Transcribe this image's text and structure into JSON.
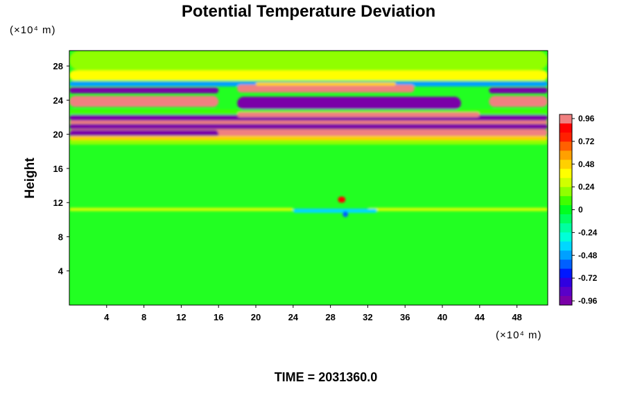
{
  "chart_data": {
    "type": "heatmap",
    "title": "Potential Temperature Deviation",
    "ylabel": "Height",
    "y_unit": "(×10⁴ m)",
    "x_unit": "(×10⁴ m)",
    "footer": "TIME = 2031360.0",
    "xlim": [
      0,
      51.3
    ],
    "ylim": [
      0,
      29.8
    ],
    "x_ticks": [
      "4",
      "8",
      "12",
      "16",
      "20",
      "24",
      "28",
      "32",
      "36",
      "40",
      "44",
      "48"
    ],
    "y_ticks": [
      "4",
      "8",
      "12",
      "16",
      "20",
      "24",
      "28"
    ],
    "colorbar": {
      "range": [
        -1.0,
        1.0
      ],
      "tick_labels": [
        "0.96",
        "0.72",
        "0.48",
        "0.24",
        "0",
        "-0.24",
        "-0.48",
        "-0.72",
        "-0.96"
      ],
      "colors": [
        "#7a00a8",
        "#5a00c8",
        "#3000e0",
        "#0018ff",
        "#0060ff",
        "#00a0ff",
        "#00d8ff",
        "#00ffd8",
        "#00ffa0",
        "#00ff60",
        "#00ff20",
        "#40ff00",
        "#90ff00",
        "#d0ff00",
        "#ffff00",
        "#ffd000",
        "#ffa000",
        "#ff6000",
        "#ff2000",
        "#ff0000",
        "#f08080"
      ]
    },
    "regions": [
      {
        "y": [
          27.5,
          29.8
        ],
        "x": [
          0,
          51.3
        ],
        "value": 0.2
      },
      {
        "y": [
          26.3,
          27.5
        ],
        "x": [
          0,
          51.3
        ],
        "value": 0.35
      },
      {
        "y": [
          25.6,
          26.2
        ],
        "x": [
          0,
          51.3
        ],
        "value": -0.5
      },
      {
        "y": [
          24.8,
          25.5
        ],
        "x": [
          0,
          16
        ],
        "value": -0.96
      },
      {
        "y": [
          24.8,
          25.5
        ],
        "x": [
          45,
          51.3
        ],
        "value": -0.96
      },
      {
        "y": [
          24.9,
          25.8
        ],
        "x": [
          18,
          37
        ],
        "value": 0.96
      },
      {
        "y": [
          25.7,
          26.1
        ],
        "x": [
          20,
          35
        ],
        "value": 0.5
      },
      {
        "y": [
          23.2,
          24.5
        ],
        "x": [
          0,
          16
        ],
        "value": 0.96
      },
      {
        "y": [
          23.2,
          24.5
        ],
        "x": [
          45,
          51.3
        ],
        "value": 0.96
      },
      {
        "y": [
          22.9,
          24.4
        ],
        "x": [
          18,
          42
        ],
        "value": -0.96
      },
      {
        "y": [
          22.3,
          22.9
        ],
        "x": [
          0,
          51.3
        ],
        "value": 0.1
      },
      {
        "y": [
          21.6,
          22.3
        ],
        "x": [
          0,
          51.3
        ],
        "value": -0.96
      },
      {
        "y": [
          22.0,
          22.6
        ],
        "x": [
          18,
          44
        ],
        "value": 0.96
      },
      {
        "y": [
          21.2,
          21.6
        ],
        "x": [
          0,
          51.3
        ],
        "value": 0.96
      },
      {
        "y": [
          20.6,
          21.2
        ],
        "x": [
          0,
          51.3
        ],
        "value": -0.96
      },
      {
        "y": [
          19.8,
          20.6
        ],
        "x": [
          0,
          51.3
        ],
        "value": 0.96
      },
      {
        "y": [
          19.6,
          20.5
        ],
        "x": [
          0,
          16
        ],
        "value": -0.96
      },
      {
        "y": [
          19.3,
          19.8
        ],
        "x": [
          0,
          51.3
        ],
        "value": 0.5
      },
      {
        "y": [
          18.8,
          19.3
        ],
        "x": [
          0,
          51.3
        ],
        "value": 0.15
      },
      {
        "y": [
          11.0,
          11.4
        ],
        "x": [
          0,
          24
        ],
        "value": 0.3
      },
      {
        "y": [
          11.0,
          11.4
        ],
        "x": [
          32,
          51.3
        ],
        "value": 0.25
      },
      {
        "y": [
          10.8,
          11.3
        ],
        "x": [
          24,
          33
        ],
        "value": -0.35
      },
      {
        "y": [
          12.0,
          12.7
        ],
        "x": [
          28.8,
          29.6
        ],
        "value": 0.9
      },
      {
        "y": [
          10.3,
          11.0
        ],
        "x": [
          29.3,
          29.9
        ],
        "value": -0.6
      }
    ]
  }
}
